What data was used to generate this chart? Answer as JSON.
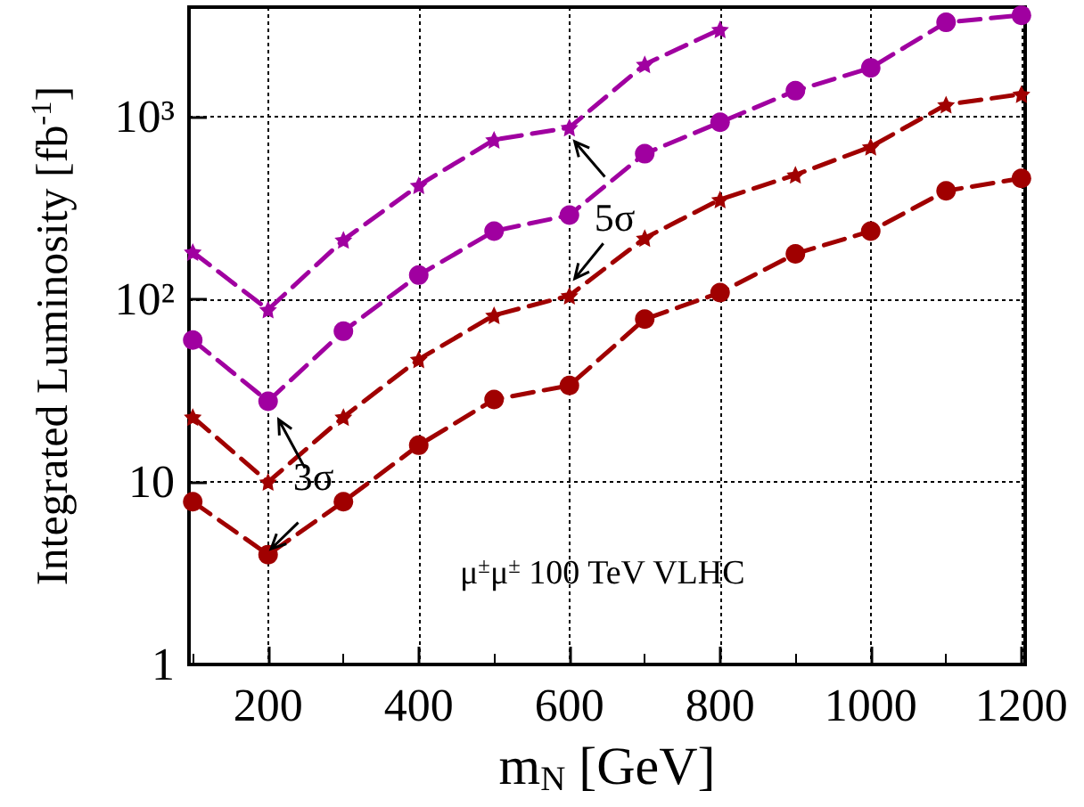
{
  "chart_data": {
    "type": "line",
    "xlabel": "m$_{N}$ [GeV]",
    "ylabel": "Integrated Luminosity [fb$^{-1}$]",
    "x": [
      100,
      200,
      300,
      400,
      500,
      600,
      700,
      800,
      900,
      1000,
      1100,
      1200
    ],
    "series": [
      {
        "color": "#a000a0",
        "marker": "star",
        "line_style": "dashed",
        "values": [
          182,
          88,
          212,
          422,
          750,
          875,
          1943,
          3020,
          null,
          null,
          null,
          null
        ]
      },
      {
        "color": "#a000a0",
        "marker": "circle",
        "line_style": "dashed",
        "values": [
          60,
          27.7,
          67,
          136,
          237,
          290,
          629,
          935,
          1393,
          1860,
          3300,
          3610
        ]
      },
      {
        "color": "#a00000",
        "marker": "star",
        "line_style": "dashed",
        "values": [
          22.7,
          10,
          22.7,
          47,
          82,
          105,
          217,
          353,
          482,
          687,
          1168,
          1334
        ]
      },
      {
        "color": "#a00000",
        "marker": "circle",
        "line_style": "dashed",
        "values": [
          7.8,
          4,
          7.8,
          15.9,
          28.3,
          33.8,
          78,
          109,
          178,
          237,
          394,
          461
        ]
      }
    ],
    "log": "y",
    "grid": true,
    "xlim": [
      95,
      1205
    ],
    "xticks": [
      200,
      400,
      600,
      800,
      1000,
      1200
    ],
    "ylim": [
      1,
      4000
    ],
    "yticks": [
      1,
      10,
      {
        "value": 100,
        "label": "10²"
      },
      {
        "value": 1000,
        "label": "10³"
      }
    ],
    "annotations": [
      {
        "text": "5σ",
        "x": 600,
        "y": 105
      },
      {
        "text": "3σ",
        "x": 200,
        "y": 4
      },
      "μ$^{±}$μ$^{±}$ 100 TeV VLHC"
    ]
  }
}
